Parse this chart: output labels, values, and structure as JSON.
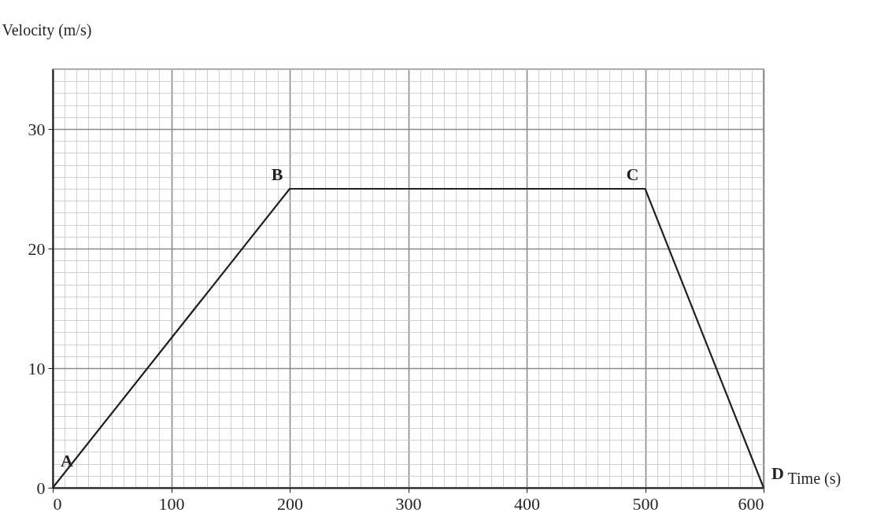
{
  "chart_data": {
    "type": "line",
    "xlabel": "Time (s)",
    "ylabel": "Velocity (m/s)",
    "x": [
      0,
      200,
      500,
      600
    ],
    "series": [
      {
        "color": "#231f20",
        "values": [
          0,
          25,
          25,
          0
        ]
      }
    ],
    "xlim": [
      0,
      600
    ],
    "ylim": [
      0,
      35
    ],
    "xticks": [
      0,
      100,
      200,
      300,
      400,
      500,
      600
    ],
    "yticks": [
      0,
      10,
      20,
      30
    ],
    "grid": true,
    "marker": "none",
    "line_style": "solid",
    "annotations": [
      {
        "text": "A",
        "x": 0,
        "y": 0
      },
      {
        "text": "B",
        "x": 200,
        "y": 25
      },
      {
        "text": "C",
        "x": 500,
        "y": 25
      },
      {
        "text": "D",
        "x": 600,
        "y": 0
      }
    ]
  }
}
